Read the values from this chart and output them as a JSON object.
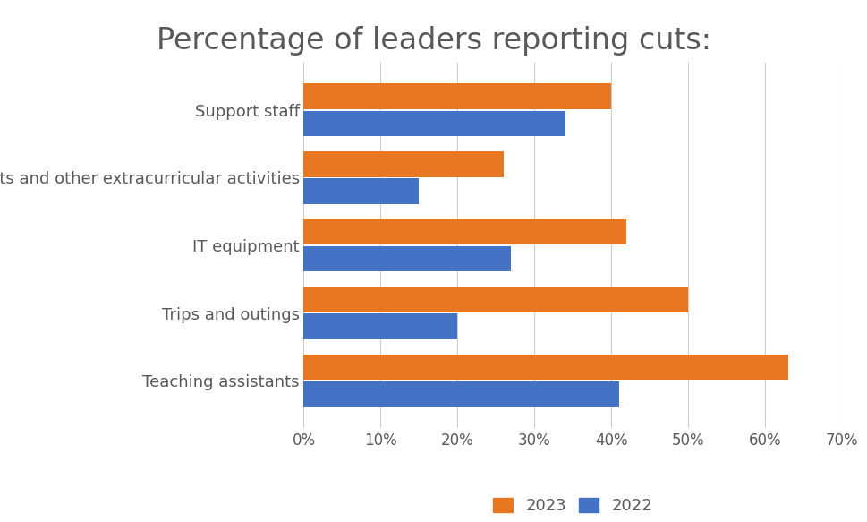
{
  "title": "Percentage of leaders reporting cuts:",
  "categories": [
    "Support staff",
    "Sports and other extracurricular activities",
    "IT equipment",
    "Trips and outings",
    "Teaching assistants"
  ],
  "values_2023": [
    40,
    26,
    42,
    50,
    63
  ],
  "values_2022": [
    34,
    15,
    27,
    20,
    41
  ],
  "color_2023": "#E87722",
  "color_2022": "#4472C4",
  "xlim": [
    0,
    70
  ],
  "xticks": [
    0,
    10,
    20,
    30,
    40,
    50,
    60,
    70
  ],
  "xtick_labels": [
    "0%",
    "10%",
    "20%",
    "30%",
    "40%",
    "50%",
    "60%",
    "70%"
  ],
  "title_fontsize": 24,
  "tick_fontsize": 12,
  "label_fontsize": 13,
  "legend_labels": [
    "2023",
    "2022"
  ],
  "background_color": "#ffffff",
  "bar_height": 0.38,
  "grid_color": "#cccccc",
  "text_color": "#595959"
}
